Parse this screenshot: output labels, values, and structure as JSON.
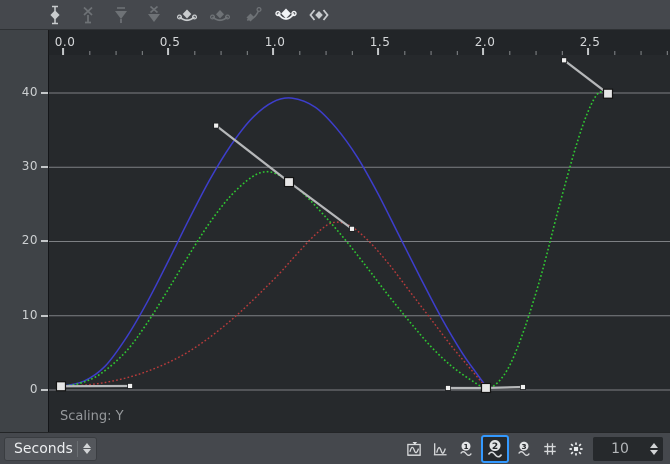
{
  "toolbar": {
    "icons": [
      {
        "name": "add-keyframe-icon",
        "state": "enabled"
      },
      {
        "name": "remove-keyframe-icon",
        "state": "disabled"
      },
      {
        "name": "filter-keyframes-icon",
        "state": "disabled"
      },
      {
        "name": "clear-filter-icon",
        "state": "disabled"
      },
      {
        "name": "smooth-tangents-icon",
        "state": "enabled"
      },
      {
        "name": "ease-in-tangent-icon",
        "state": "disabled"
      },
      {
        "name": "ease-out-tangent-icon",
        "state": "disabled"
      },
      {
        "name": "auto-tangents-icon",
        "state": "active"
      },
      {
        "name": "linear-keyframe-icon",
        "state": "enabled"
      }
    ]
  },
  "plot": {
    "scaling_label": "Scaling: Y"
  },
  "bottom_bar": {
    "timebase": {
      "value": "Seconds"
    },
    "icons": [
      {
        "name": "fit-view-icon",
        "selected": false,
        "label": ""
      },
      {
        "name": "curve-display-icon",
        "selected": false,
        "label": ""
      },
      {
        "name": "smoothness-1-icon",
        "selected": false,
        "label": "1"
      },
      {
        "name": "smoothness-2-icon",
        "selected": true,
        "label": "2"
      },
      {
        "name": "smoothness-3-icon",
        "selected": false,
        "label": "3"
      },
      {
        "name": "grid-icon",
        "selected": false,
        "label": ""
      },
      {
        "name": "snap-grid-icon",
        "selected": false,
        "label": ""
      }
    ],
    "grid_size": {
      "value": "10"
    }
  },
  "chart_data": {
    "type": "line",
    "title": "",
    "xlabel": "Seconds",
    "ylabel": "",
    "grid": "horizontal",
    "x_range": [
      -0.067,
      2.895
    ],
    "y_range": [
      -5.66,
      45.11
    ],
    "x_ticks": {
      "values": [
        0,
        0.5,
        1.0,
        1.5,
        2.0,
        2.5
      ],
      "labels": [
        "0.0",
        "0.5",
        "1.0",
        "1.5",
        "2.0",
        "2.5"
      ],
      "minor_subdivisions": 4
    },
    "y_ticks": {
      "values": [
        40,
        30,
        20,
        10,
        0
      ],
      "labels": [
        "40",
        "30",
        "20",
        "10",
        "0"
      ]
    },
    "grid_color": "#7d8084",
    "series": [
      {
        "name": "blue-curve",
        "color": "#3d3ecc",
        "style": "solid",
        "width": 1.5,
        "points": [
          [
            -0.005,
            0.5
          ],
          [
            0.1,
            1.2
          ],
          [
            0.2,
            3.2
          ],
          [
            0.3,
            7.0
          ],
          [
            0.4,
            11.8
          ],
          [
            0.5,
            17.3
          ],
          [
            0.6,
            23.0
          ],
          [
            0.7,
            28.4
          ],
          [
            0.8,
            33.0
          ],
          [
            0.9,
            36.6
          ],
          [
            1.0,
            38.8
          ],
          [
            1.09,
            39.3
          ],
          [
            1.2,
            38.1
          ],
          [
            1.3,
            35.3
          ],
          [
            1.4,
            31.4
          ],
          [
            1.5,
            26.4
          ],
          [
            1.6,
            20.8
          ],
          [
            1.7,
            15.2
          ],
          [
            1.8,
            9.8
          ],
          [
            1.9,
            5.0
          ],
          [
            1.96,
            2.6
          ],
          [
            2.014,
            0.5
          ]
        ]
      },
      {
        "name": "red-curve",
        "color": "#bb3b3b",
        "style": "dotted",
        "width": 1.4,
        "points": [
          [
            -0.005,
            0.4
          ],
          [
            0.2,
            1.0
          ],
          [
            0.4,
            2.5
          ],
          [
            0.6,
            5.2
          ],
          [
            0.8,
            9.4
          ],
          [
            1.0,
            14.8
          ],
          [
            1.1,
            17.9
          ],
          [
            1.2,
            20.9
          ],
          [
            1.28,
            22.5
          ],
          [
            1.36,
            22.2
          ],
          [
            1.45,
            20.2
          ],
          [
            1.55,
            17.0
          ],
          [
            1.65,
            13.3
          ],
          [
            1.75,
            9.6
          ],
          [
            1.85,
            5.9
          ],
          [
            1.95,
            2.5
          ],
          [
            2.014,
            0.3
          ]
        ]
      },
      {
        "name": "green-curve",
        "color": "#2fc832",
        "style": "dotted",
        "width": 1.6,
        "points": [
          [
            -0.01,
            0.5
          ],
          [
            0.08,
            0.9
          ],
          [
            0.18,
            2.2
          ],
          [
            0.3,
            5.2
          ],
          [
            0.4,
            9.0
          ],
          [
            0.5,
            13.5
          ],
          [
            0.6,
            18.2
          ],
          [
            0.7,
            22.6
          ],
          [
            0.8,
            26.2
          ],
          [
            0.9,
            28.7
          ],
          [
            0.97,
            29.4
          ],
          [
            1.03,
            28.9
          ],
          [
            1.076,
            28.0
          ],
          [
            1.15,
            26.3
          ],
          [
            1.25,
            23.3
          ],
          [
            1.35,
            20.0
          ],
          [
            1.45,
            16.4
          ],
          [
            1.55,
            12.7
          ],
          [
            1.65,
            9.2
          ],
          [
            1.75,
            5.9
          ],
          [
            1.85,
            3.2
          ],
          [
            1.95,
            1.2
          ],
          [
            2.014,
            0.27
          ],
          [
            2.07,
            1.0
          ],
          [
            2.13,
            3.5
          ],
          [
            2.2,
            8.5
          ],
          [
            2.28,
            15.8
          ],
          [
            2.36,
            24.5
          ],
          [
            2.44,
            32.6
          ],
          [
            2.5,
            37.5
          ],
          [
            2.55,
            40.0
          ],
          [
            2.595,
            39.9
          ]
        ]
      }
    ],
    "keyframes": [
      {
        "t": -0.01,
        "v": 0.5,
        "handles": [
          [
            0.319,
            0.54
          ]
        ]
      },
      {
        "t": 1.076,
        "v": 28.0,
        "handles": [
          [
            0.729,
            35.6
          ],
          [
            1.376,
            21.7
          ]
        ]
      },
      {
        "t": 2.014,
        "v": 0.27,
        "handles": [
          [
            1.833,
            0.27
          ],
          [
            2.19,
            0.4
          ]
        ]
      },
      {
        "t": 2.595,
        "v": 39.9,
        "handles": [
          [
            2.386,
            44.4
          ]
        ]
      }
    ],
    "keyframe_color": "#e6e6e6",
    "handle_color": "#b6b8ba"
  }
}
